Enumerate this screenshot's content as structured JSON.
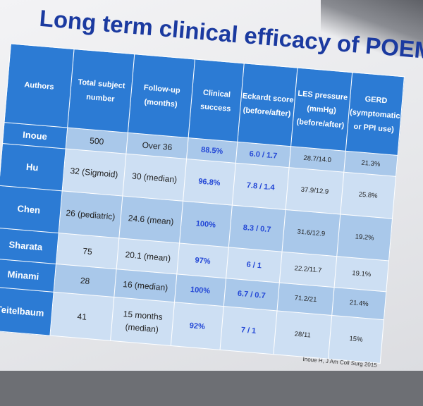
{
  "title": "Long term clinical efficacy of POEM",
  "columns": [
    "Authors",
    "Total subject number",
    "Follow-up (months)",
    "Clinical success",
    "Eckardt score (before/after)",
    "LES pressure (mmHg) (before/after)",
    "GERD (symptomatic or PPI use)"
  ],
  "rows": [
    {
      "author": "Inoue",
      "subjects": "500",
      "followup": "Over 36",
      "success": "88.5%",
      "eckardt": "6.0 / 1.7",
      "les": "28.7/14.0",
      "gerd": "21.3%"
    },
    {
      "author": "Hu",
      "subjects": "32 (Sigmoid)",
      "followup": "30 (median)",
      "success": "96.8%",
      "eckardt": "7.8 / 1.4",
      "les": "37.9/12.9",
      "gerd": "25.8%"
    },
    {
      "author": "Chen",
      "subjects": "26 (pediatric)",
      "followup": "24.6 (mean)",
      "success": "100%",
      "eckardt": "8.3 / 0.7",
      "les": "31.6/12.9",
      "gerd": "19.2%"
    },
    {
      "author": "Sharata",
      "subjects": "75",
      "followup": "20.1 (mean)",
      "success": "97%",
      "eckardt": "6 / 1",
      "les": "22.2/11.7",
      "gerd": "19.1%"
    },
    {
      "author": "Minami",
      "subjects": "28",
      "followup": "16 (median)",
      "success": "100%",
      "eckardt": "6.7 / 0.7",
      "les": "71.2/21",
      "gerd": "21.4%"
    },
    {
      "author": "Teitelbaum",
      "subjects": "41",
      "followup": "15 months (median)",
      "success": "92%",
      "eckardt": "7 / 1",
      "les": "28/11",
      "gerd": "15%"
    }
  ],
  "citation": "Inoue H, J Am Coll Surg 2015",
  "colors": {
    "header_blue": "#2c7bd4",
    "title_blue": "#1b3aa0",
    "highlight_blue": "#2448d6"
  }
}
